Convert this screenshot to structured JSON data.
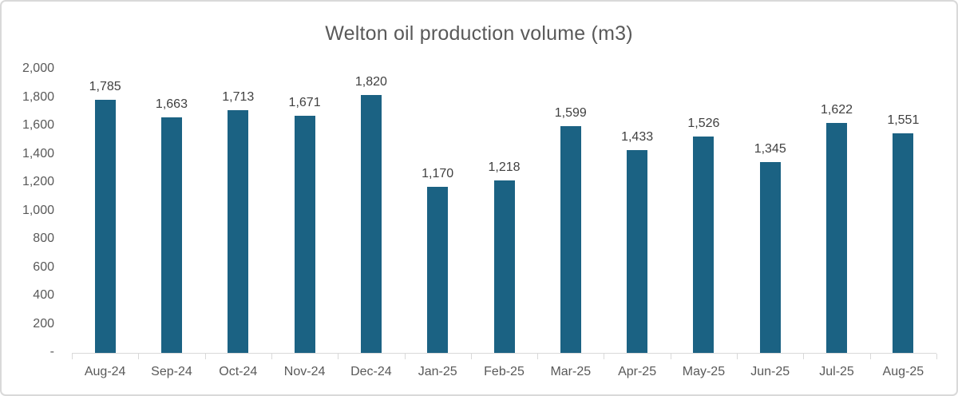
{
  "chart_data": {
    "type": "bar",
    "title": "Welton oil production volume (m3)",
    "categories": [
      "Aug-24",
      "Sep-24",
      "Oct-24",
      "Nov-24",
      "Dec-24",
      "Jan-25",
      "Feb-25",
      "Mar-25",
      "Apr-25",
      "May-25",
      "Jun-25",
      "Jul-25",
      "Aug-25"
    ],
    "values": [
      1785,
      1663,
      1713,
      1671,
      1820,
      1170,
      1218,
      1599,
      1433,
      1526,
      1345,
      1622,
      1551
    ],
    "value_labels": [
      "1,785",
      "1,663",
      "1,713",
      "1,671",
      "1,820",
      "1,170",
      "1,218",
      "1,599",
      "1,433",
      "1,526",
      "1,345",
      "1,622",
      "1,551"
    ],
    "xlabel": "",
    "ylabel": "",
    "ylim": [
      0,
      2000
    ],
    "y_tick_values": [
      2000,
      1800,
      1600,
      1400,
      1200,
      1000,
      800,
      600,
      400,
      200,
      0
    ],
    "y_tick_labels": [
      "2,000",
      "1,800",
      "1,600",
      "1,400",
      "1,200",
      "1,000",
      "800",
      "600",
      "400",
      "200",
      "-"
    ],
    "grid": false,
    "legend": "none",
    "colors": {
      "bar_fill": "#1b6283",
      "axis_line": "#d9d9d9",
      "axis_text": "#595959",
      "data_label_text": "#404040",
      "title_text": "#595959",
      "frame_border": "#d9d9d9",
      "background": "#ffffff"
    }
  }
}
